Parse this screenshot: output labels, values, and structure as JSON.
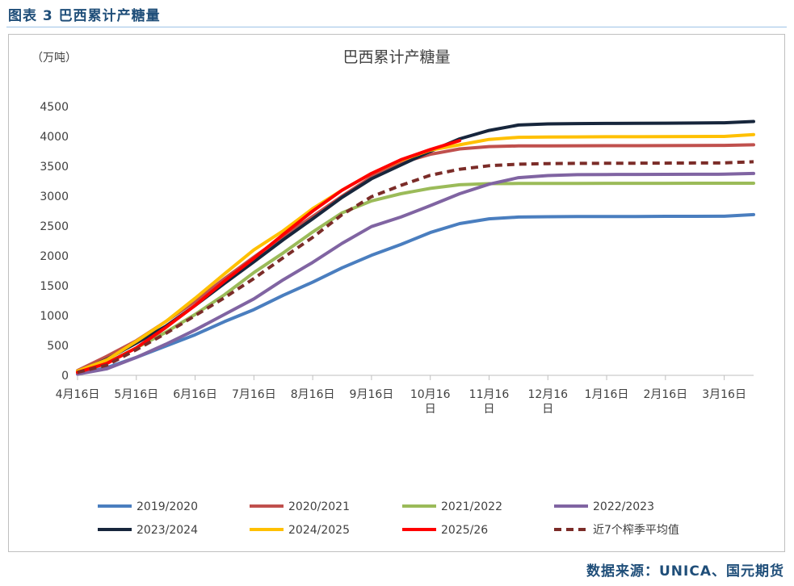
{
  "figure_label": "图表 3  巴西累计产糖量",
  "source_label": "数据来源：UNICA、国元期货",
  "chart_data": {
    "type": "line",
    "title": "巴西累计产糖量",
    "unit_label": "（万吨）",
    "ylim": [
      0,
      4500
    ],
    "yticks": [
      0,
      500,
      1000,
      1500,
      2000,
      2500,
      3000,
      3500,
      4000,
      4500
    ],
    "categories": [
      "4月16日",
      "5月16日",
      "6月16日",
      "7月16日",
      "8月16日",
      "9月16日",
      "10月16日",
      "11月16日",
      "12月16日",
      "1月16日",
      "2月16日",
      "3月16日"
    ],
    "x_index_range": [
      0,
      23
    ],
    "series": [
      {
        "name": "2019/2020",
        "color": "#4a7ebf",
        "dashed": false,
        "x": [
          0,
          1,
          2,
          3,
          4,
          5,
          6,
          7,
          8,
          9,
          10,
          11,
          12,
          13,
          14,
          15,
          16,
          17,
          18,
          19,
          20,
          21,
          22,
          23
        ],
        "values": [
          20,
          130,
          300,
          490,
          680,
          900,
          1100,
          1340,
          1560,
          1800,
          2010,
          2190,
          2390,
          2540,
          2620,
          2650,
          2655,
          2658,
          2660,
          2660,
          2662,
          2662,
          2664,
          2690
        ]
      },
      {
        "name": "2020/2021",
        "color": "#c0504d",
        "dashed": false,
        "x": [
          0,
          1,
          2,
          3,
          4,
          5,
          6,
          7,
          8,
          9,
          10,
          11,
          12,
          13,
          14,
          15,
          16,
          17,
          18,
          19,
          20,
          21,
          22,
          23
        ],
        "values": [
          80,
          320,
          580,
          900,
          1240,
          1620,
          1980,
          2330,
          2660,
          3000,
          3320,
          3560,
          3700,
          3790,
          3830,
          3840,
          3842,
          3843,
          3845,
          3845,
          3846,
          3848,
          3850,
          3860
        ]
      },
      {
        "name": "2021/2022",
        "color": "#9bbb59",
        "dashed": false,
        "x": [
          0,
          1,
          2,
          3,
          4,
          5,
          6,
          7,
          8,
          9,
          10,
          11,
          12,
          13,
          14,
          15,
          16,
          17,
          18,
          19,
          20,
          21,
          22,
          23
        ],
        "values": [
          50,
          210,
          460,
          720,
          1020,
          1350,
          1720,
          2050,
          2400,
          2720,
          2920,
          3040,
          3130,
          3190,
          3210,
          3212,
          3213,
          3214,
          3215,
          3215,
          3215,
          3216,
          3216,
          3216
        ]
      },
      {
        "name": "2022/2023",
        "color": "#8064a2",
        "dashed": false,
        "x": [
          0,
          1,
          2,
          3,
          4,
          5,
          6,
          7,
          8,
          9,
          10,
          11,
          12,
          13,
          14,
          15,
          16,
          17,
          18,
          19,
          20,
          21,
          22,
          23
        ],
        "values": [
          20,
          110,
          300,
          520,
          760,
          1020,
          1280,
          1600,
          1890,
          2210,
          2490,
          2650,
          2840,
          3040,
          3200,
          3310,
          3345,
          3360,
          3362,
          3364,
          3365,
          3366,
          3368,
          3380
        ]
      },
      {
        "name": "2023/2024",
        "color": "#17263c",
        "dashed": false,
        "x": [
          0,
          1,
          2,
          3,
          4,
          5,
          6,
          7,
          8,
          9,
          10,
          11,
          12,
          13,
          14,
          15,
          16,
          17,
          18,
          19,
          20,
          21,
          22,
          23
        ],
        "values": [
          60,
          270,
          540,
          820,
          1170,
          1540,
          1900,
          2270,
          2620,
          2980,
          3290,
          3520,
          3750,
          3960,
          4100,
          4190,
          4210,
          4215,
          4218,
          4220,
          4222,
          4224,
          4228,
          4250
        ]
      },
      {
        "name": "2024/2025",
        "color": "#ffc000",
        "dashed": false,
        "x": [
          0,
          1,
          2,
          3,
          4,
          5,
          6,
          7,
          8,
          9,
          10,
          11,
          12,
          13,
          14,
          15,
          16,
          17,
          18,
          19,
          20,
          21,
          22,
          23
        ],
        "values": [
          70,
          260,
          570,
          900,
          1290,
          1700,
          2100,
          2420,
          2790,
          3100,
          3380,
          3600,
          3770,
          3860,
          3950,
          3985,
          3990,
          3992,
          3994,
          3995,
          3996,
          3998,
          4000,
          4030
        ]
      },
      {
        "name": "2025/26",
        "color": "#ff0000",
        "dashed": false,
        "x": [
          0,
          1,
          2,
          3,
          4,
          5,
          6,
          7,
          8,
          9,
          10,
          11,
          12,
          13
        ],
        "values": [
          50,
          200,
          460,
          800,
          1170,
          1580,
          1960,
          2360,
          2750,
          3100,
          3380,
          3610,
          3780,
          3930
        ]
      },
      {
        "name": "近7个榨季平均值",
        "color": "#7b2c28",
        "dashed": true,
        "x": [
          0,
          1,
          2,
          3,
          4,
          5,
          6,
          7,
          8,
          9,
          10,
          11,
          12,
          13,
          14,
          15,
          16,
          17,
          18,
          19,
          20,
          21,
          22,
          23
        ],
        "values": [
          50,
          170,
          430,
          700,
          1000,
          1300,
          1620,
          1970,
          2310,
          2690,
          2990,
          3180,
          3350,
          3450,
          3510,
          3535,
          3545,
          3548,
          3550,
          3552,
          3553,
          3555,
          3557,
          3575
        ]
      }
    ]
  }
}
